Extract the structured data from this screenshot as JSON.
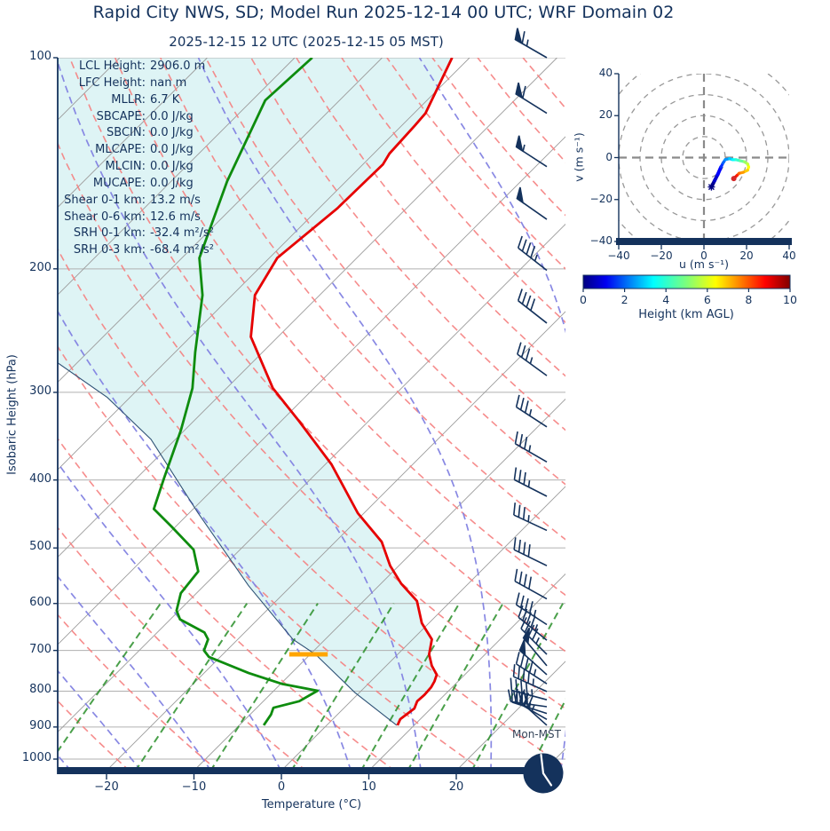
{
  "figure_title": "Rapid City NWS, SD; Model Run 2025-12-14 00 UTC; WRF Domain 02",
  "subtitle": "2025-12-15 12 UTC  (2025-12-15 05 MST)",
  "clock": {
    "label": "Mon-MST",
    "time_shown": "05:00"
  },
  "colors": {
    "navy": "#14325c",
    "temperature": "#e60000",
    "dewpoint": "#0e8c0e",
    "parcel": "#2f5276",
    "isotherm": "#9b9b9b",
    "grid": "#b0b0b0",
    "dry_adiabat": "#f57f7f",
    "moist_adiabat": "#8282e2",
    "mixing_ratio": "#2a8f2a",
    "shade": "#def4f5",
    "lcl_marker": "#ffa500",
    "hodo_grid": "#999999",
    "end_marker": "#d62728"
  },
  "annotations": [
    {
      "label": "LCL Height:",
      "value": "2906.0 m"
    },
    {
      "label": "LFC Height:",
      "value": "nan m"
    },
    {
      "label": "MLLR:",
      "value": "6.7 K"
    },
    {
      "label": "SBCAPE:",
      "value": "0.0 J/kg"
    },
    {
      "label": "SBCIN:",
      "value": "0.0 J/kg"
    },
    {
      "label": "MLCAPE:",
      "value": "0.0 J/kg"
    },
    {
      "label": "MLCIN:",
      "value": "0.0 J/kg"
    },
    {
      "label": "MUCAPE:",
      "value": "0.0 J/kg"
    },
    {
      "label": "Shear 0-1 km:",
      "value": "13.2 m/s"
    },
    {
      "label": "Shear 0-6 km:",
      "value": "12.6 m/s"
    },
    {
      "label": "SRH 0-1 km:",
      "value": "-32.4 m²/s²"
    },
    {
      "label": "SRH 0-3 km:",
      "value": "-68.4 m²/s²"
    }
  ],
  "chart_data": [
    {
      "type": "line",
      "name": "skew_t_log_p_sounding",
      "xlabel": "Temperature (°C)",
      "ylabel": "Isobaric Height (hPa)",
      "x_ticks": [
        -20,
        -10,
        0,
        10,
        20
      ],
      "y_ticks": [
        100,
        200,
        300,
        400,
        500,
        600,
        700,
        800,
        900,
        1000
      ],
      "xlim_bottom_degC": [
        -25.6,
        32.5
      ],
      "plim_hPa": [
        1040,
        100
      ],
      "skew_deg": 45,
      "shade_between": "parcel_and_temperature",
      "series": [
        {
          "name": "temperature",
          "color_key": "temperature",
          "points_p_T": [
            [
              100,
              -62
            ],
            [
              120,
              -58.7
            ],
            [
              125,
              -58.5
            ],
            [
              137,
              -58.2
            ],
            [
              142,
              -57.7
            ],
            [
              164,
              -57.9
            ],
            [
              193,
              -59.1
            ],
            [
              218,
              -57.4
            ],
            [
              250,
              -53.1
            ],
            [
              296,
              -44.7
            ],
            [
              330,
              -37.9
            ],
            [
              380,
              -29.3
            ],
            [
              446,
              -20.7
            ],
            [
              490,
              -14.7
            ],
            [
              530,
              -11.0
            ],
            [
              562,
              -7.7
            ],
            [
              595,
              -3.9
            ],
            [
              640,
              -0.8
            ],
            [
              675,
              2.2
            ],
            [
              709,
              3.6
            ],
            [
              736,
              5.2
            ],
            [
              758,
              6.8
            ],
            [
              775,
              7.3
            ],
            [
              790,
              7.6
            ],
            [
              810,
              7.7
            ],
            [
              827,
              7.6
            ],
            [
              847,
              8.1
            ],
            [
              877,
              7.7
            ],
            [
              895,
              8.1
            ]
          ]
        },
        {
          "name": "dewpoint",
          "color_key": "dewpoint",
          "points_p_T": [
            [
              100,
              -78
            ],
            [
              115,
              -78.5
            ],
            [
              150,
              -73.6
            ],
            [
              193,
              -68
            ],
            [
              218,
              -63.4
            ],
            [
              263,
              -57.7
            ],
            [
              296,
              -53.9
            ],
            [
              340,
              -50.4
            ],
            [
              397,
              -46.9
            ],
            [
              440,
              -44.5
            ],
            [
              466,
              -40.5
            ],
            [
              503,
              -35.3
            ],
            [
              540,
              -32.3
            ],
            [
              580,
              -31.8
            ],
            [
              614,
              -30.3
            ],
            [
              632,
              -28.9
            ],
            [
              660,
              -24.6
            ],
            [
              675,
              -23.4
            ],
            [
              700,
              -22.6
            ],
            [
              715,
              -21.3
            ],
            [
              754,
              -14.9
            ],
            [
              781,
              -9.9
            ],
            [
              799,
              -5.0
            ],
            [
              827,
              -5.9
            ],
            [
              845,
              -8.1
            ],
            [
              864,
              -7.6
            ],
            [
              895,
              -7.2
            ]
          ]
        },
        {
          "name": "parcel_profile",
          "color_key": "parcel",
          "points_p_T": [
            [
              272,
              -72.3
            ],
            [
              305,
              -62.6
            ],
            [
              350,
              -52.8
            ],
            [
              445,
              -39.1
            ],
            [
              566,
              -24.9
            ],
            [
              675,
              -13.7
            ],
            [
              709,
              -9.4
            ],
            [
              804,
              -0.5
            ],
            [
              895,
              8.0
            ]
          ]
        }
      ],
      "lcl_marker": {
        "p": 709,
        "t_from": -12.4,
        "t_to": -8.0
      },
      "wind_barbs_p_kt_dir": [
        [
          100,
          65,
          300
        ],
        [
          120,
          60,
          302
        ],
        [
          143,
          55,
          303
        ],
        [
          170,
          50,
          305
        ],
        [
          201,
          45,
          308
        ],
        [
          239,
          40,
          308
        ],
        [
          284,
          38,
          306
        ],
        [
          336,
          35,
          303
        ],
        [
          377,
          35,
          300
        ],
        [
          422,
          35,
          297
        ],
        [
          472,
          38,
          295
        ],
        [
          530,
          40,
          296
        ],
        [
          591,
          42,
          299
        ],
        [
          643,
          45,
          303
        ],
        [
          677,
          45,
          309
        ],
        [
          709,
          48,
          315
        ],
        [
          736,
          50,
          320
        ],
        [
          758,
          50,
          312
        ],
        [
          781,
          48,
          303
        ],
        [
          801,
          45,
          294
        ],
        [
          823,
          45,
          285
        ],
        [
          842,
          42,
          278
        ],
        [
          861,
          40,
          288
        ],
        [
          878,
          38,
          300
        ],
        [
          895,
          35,
          312
        ]
      ],
      "background": {
        "isotherms_degC": {
          "start": -120,
          "stop": 40,
          "step": 10
        },
        "dry_adiabats_K": {
          "start": 233,
          "stop": 503,
          "step": 10
        },
        "moist_adiabats_start_degC": {
          "start": -40,
          "stop": 40,
          "step": 8
        },
        "mixing_ratios_g_kg": [
          0.4,
          1,
          2,
          4,
          7,
          10,
          16,
          24,
          32
        ],
        "mixing_ratio_top_hPa": 600
      }
    },
    {
      "type": "line",
      "name": "hodograph",
      "xlabel": "u (m s⁻¹)",
      "ylabel": "v (m s⁻¹)",
      "x_ticks": [
        -40,
        -20,
        0,
        20,
        40
      ],
      "y_ticks": [
        -40,
        -20,
        0,
        20,
        40
      ],
      "xlim": [
        -40,
        40
      ],
      "ylim": [
        -40,
        40
      ],
      "ring_radii": [
        10,
        20,
        30,
        40,
        50
      ],
      "points_u_v_h": [
        [
          3.5,
          -14,
          0
        ],
        [
          5,
          -11,
          0.5
        ],
        [
          6.5,
          -8,
          1
        ],
        [
          8,
          -4.5,
          1.5
        ],
        [
          9,
          -2.5,
          2
        ],
        [
          10,
          -1,
          2.5
        ],
        [
          12,
          -0.5,
          3
        ],
        [
          13.5,
          -1,
          3.5
        ],
        [
          15,
          -1,
          4
        ],
        [
          17,
          -1.5,
          4.5
        ],
        [
          19,
          -2,
          5
        ],
        [
          20.5,
          -3,
          5.5
        ],
        [
          21,
          -4.5,
          6
        ],
        [
          20.5,
          -6,
          6.5
        ],
        [
          18.5,
          -7,
          7
        ],
        [
          16.5,
          -7.5,
          7.5
        ],
        [
          15.5,
          -8.5,
          8
        ],
        [
          14.5,
          -9.5,
          9
        ],
        [
          14,
          -10,
          10
        ]
      ],
      "end_marker_u_v": [
        14,
        -10
      ],
      "colorbar": {
        "label": "Height (km AGL)",
        "ticks": [
          0,
          2,
          4,
          6,
          8,
          10
        ],
        "cmap": "jet",
        "vmin": 0,
        "vmax": 10
      }
    }
  ]
}
